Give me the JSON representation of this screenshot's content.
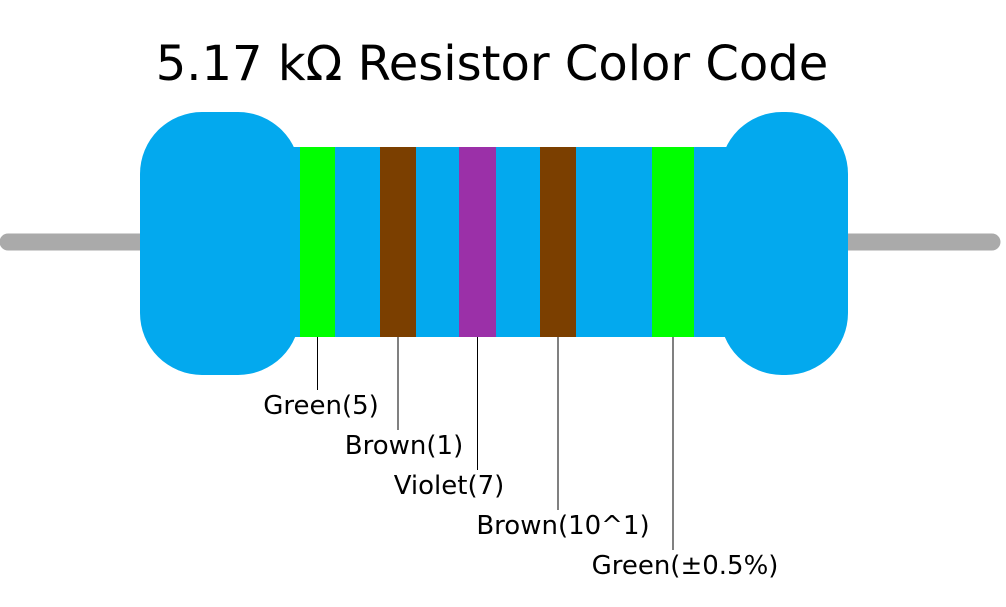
{
  "title": "5.17 kΩ Resistor Color Code",
  "bands": [
    {
      "label": "Green(5)",
      "color": "#00ff00"
    },
    {
      "label": "Brown(1)",
      "color": "#7b3f00"
    },
    {
      "label": "Violet(7)",
      "color": "#9b30a8"
    },
    {
      "label": "Brown(10^1)",
      "color": "#7b3f00"
    },
    {
      "label": "Green(±0.5%)",
      "color": "#00ff00"
    }
  ]
}
